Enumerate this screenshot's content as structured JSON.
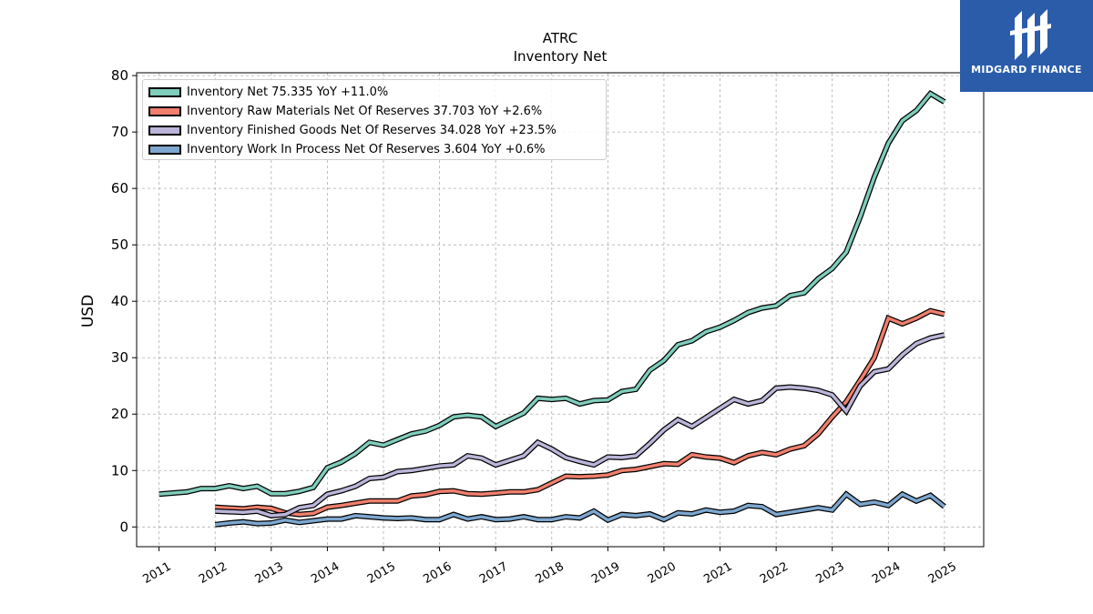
{
  "title": "ATRC",
  "subtitle": "Inventory Net",
  "logo": {
    "text": "MIDGARD FINANCE",
    "bg_color": "#2a5caa"
  },
  "chart_data": {
    "type": "line",
    "ylabel": "USD",
    "xlabel": "",
    "ylim": [
      -3.5,
      80.5
    ],
    "yticks": [
      0,
      10,
      20,
      30,
      40,
      50,
      60,
      70,
      80
    ],
    "xlim": [
      2010.6,
      2025.7
    ],
    "xticks": [
      "2011",
      "2012",
      "2013",
      "2014",
      "2015",
      "2016",
      "2017",
      "2018",
      "2019",
      "2020",
      "2021",
      "2022",
      "2023",
      "2024",
      "2025"
    ],
    "grid": true,
    "legend_position": "top-left",
    "series": [
      {
        "name": "Inventory Net  75.335 YoY +11.0%",
        "color": "#7fcdbb",
        "x": [
          2011.0,
          2011.5,
          2011.75,
          2012.0,
          2012.25,
          2012.5,
          2012.75,
          2013.0,
          2013.25,
          2013.5,
          2013.75,
          2014.0,
          2014.25,
          2014.5,
          2014.75,
          2015.0,
          2015.25,
          2015.5,
          2015.75,
          2016.0,
          2016.25,
          2016.5,
          2016.75,
          2017.0,
          2017.25,
          2017.5,
          2017.75,
          2018.0,
          2018.25,
          2018.5,
          2018.75,
          2019.0,
          2019.25,
          2019.5,
          2019.75,
          2020.0,
          2020.25,
          2020.5,
          2020.75,
          2021.0,
          2021.25,
          2021.5,
          2021.75,
          2022.0,
          2022.25,
          2022.5,
          2022.75,
          2023.0,
          2023.25,
          2023.5,
          2023.75,
          2024.0,
          2024.25,
          2024.5,
          2024.75,
          2025.0
        ],
        "y": [
          5.8,
          6.2,
          6.8,
          6.8,
          7.3,
          6.8,
          7.2,
          5.9,
          5.9,
          6.3,
          7.0,
          10.5,
          11.5,
          13.0,
          15.0,
          14.5,
          15.5,
          16.5,
          17.0,
          18.0,
          19.5,
          19.8,
          19.5,
          17.8,
          19.0,
          20.2,
          22.8,
          22.6,
          22.8,
          21.8,
          22.4,
          22.5,
          24.0,
          24.4,
          27.8,
          29.5,
          32.3,
          33.0,
          34.6,
          35.4,
          36.6,
          38.0,
          38.8,
          39.2,
          41.0,
          41.5,
          44.0,
          45.8,
          48.7,
          55.0,
          62.0,
          68.0,
          72.0,
          73.8,
          76.8,
          75.335
        ]
      },
      {
        "name": "Inventory Raw Materials Net Of Reserves  37.703 YoY +2.6%",
        "color": "#f07f6d",
        "x": [
          2012.0,
          2012.5,
          2012.75,
          2013.0,
          2013.25,
          2013.5,
          2013.75,
          2014.0,
          2014.25,
          2014.5,
          2014.75,
          2015.0,
          2015.25,
          2015.5,
          2015.75,
          2016.0,
          2016.25,
          2016.5,
          2016.75,
          2017.0,
          2017.25,
          2017.5,
          2017.75,
          2018.0,
          2018.25,
          2018.5,
          2018.75,
          2019.0,
          2019.25,
          2019.5,
          2019.75,
          2020.0,
          2020.25,
          2020.5,
          2020.75,
          2021.0,
          2021.25,
          2021.5,
          2021.75,
          2022.0,
          2022.25,
          2022.5,
          2022.75,
          2023.0,
          2023.25,
          2023.5,
          2023.75,
          2024.0,
          2024.25,
          2024.5,
          2024.75,
          2025.0
        ],
        "y": [
          3.5,
          3.2,
          3.5,
          3.3,
          2.5,
          2.2,
          2.4,
          3.5,
          3.8,
          4.2,
          4.6,
          4.6,
          4.6,
          5.5,
          5.7,
          6.3,
          6.4,
          5.9,
          5.8,
          6.0,
          6.2,
          6.2,
          6.6,
          7.8,
          9.0,
          8.9,
          9.0,
          9.2,
          10.0,
          10.2,
          10.7,
          11.2,
          11.1,
          12.8,
          12.4,
          12.2,
          11.4,
          12.6,
          13.2,
          12.8,
          13.8,
          14.4,
          16.5,
          19.5,
          22.2,
          26.0,
          30.0,
          37.0,
          36.0,
          37.0,
          38.3,
          37.703
        ]
      },
      {
        "name": "Inventory Finished Goods Net Of Reserves  34.028 YoY +23.5%",
        "color": "#bcb5d9",
        "x": [
          2012.0,
          2012.5,
          2012.75,
          2013.0,
          2013.25,
          2013.5,
          2013.75,
          2014.0,
          2014.25,
          2014.5,
          2014.75,
          2015.0,
          2015.25,
          2015.5,
          2015.75,
          2016.0,
          2016.25,
          2016.5,
          2016.75,
          2017.0,
          2017.25,
          2017.5,
          2017.75,
          2018.0,
          2018.25,
          2018.5,
          2018.75,
          2019.0,
          2019.25,
          2019.5,
          2019.75,
          2020.0,
          2020.25,
          2020.5,
          2020.75,
          2021.0,
          2021.25,
          2021.5,
          2021.75,
          2022.0,
          2022.25,
          2022.5,
          2022.75,
          2023.0,
          2023.25,
          2023.5,
          2023.75,
          2024.0,
          2024.25,
          2024.5,
          2024.75,
          2025.0
        ],
        "y": [
          2.8,
          2.6,
          2.8,
          2.0,
          2.2,
          3.4,
          3.8,
          5.8,
          6.4,
          7.2,
          8.6,
          8.8,
          9.8,
          10.0,
          10.4,
          10.8,
          11.0,
          12.6,
          12.2,
          11.0,
          11.8,
          12.6,
          15.0,
          13.8,
          12.3,
          11.6,
          11.0,
          12.4,
          12.3,
          12.6,
          14.8,
          17.2,
          19.0,
          17.8,
          19.4,
          21.0,
          22.6,
          21.8,
          22.4,
          24.6,
          24.8,
          24.6,
          24.2,
          23.4,
          20.5,
          25.0,
          27.5,
          28.0,
          30.5,
          32.5,
          33.5,
          34.028
        ]
      },
      {
        "name": "Inventory Work In Process Net Of Reserves  3.604 YoY +0.6%",
        "color": "#7da7cf",
        "x": [
          2012.0,
          2012.25,
          2012.5,
          2012.75,
          2013.0,
          2013.25,
          2013.5,
          2013.75,
          2014.0,
          2014.25,
          2014.5,
          2014.75,
          2015.0,
          2015.25,
          2015.5,
          2015.75,
          2016.0,
          2016.25,
          2016.5,
          2016.75,
          2017.0,
          2017.25,
          2017.5,
          2017.75,
          2018.0,
          2018.25,
          2018.5,
          2018.75,
          2019.0,
          2019.25,
          2019.5,
          2019.75,
          2020.0,
          2020.25,
          2020.5,
          2020.75,
          2021.0,
          2021.25,
          2021.5,
          2021.75,
          2022.0,
          2022.25,
          2022.5,
          2022.75,
          2023.0,
          2023.25,
          2023.5,
          2023.75,
          2024.0,
          2024.25,
          2024.5,
          2024.75,
          2025.0
        ],
        "y": [
          0.4,
          0.7,
          0.9,
          0.6,
          0.7,
          1.2,
          0.8,
          1.1,
          1.4,
          1.4,
          2.0,
          1.8,
          1.6,
          1.5,
          1.6,
          1.3,
          1.3,
          2.2,
          1.4,
          1.8,
          1.3,
          1.4,
          1.8,
          1.3,
          1.3,
          1.8,
          1.6,
          2.8,
          1.2,
          2.2,
          2.0,
          2.3,
          1.3,
          2.5,
          2.3,
          3.0,
          2.6,
          2.8,
          3.8,
          3.6,
          2.2,
          2.6,
          3.0,
          3.4,
          3.0,
          5.8,
          4.0,
          4.4,
          3.8,
          5.8,
          4.6,
          5.6,
          3.604
        ]
      }
    ]
  }
}
